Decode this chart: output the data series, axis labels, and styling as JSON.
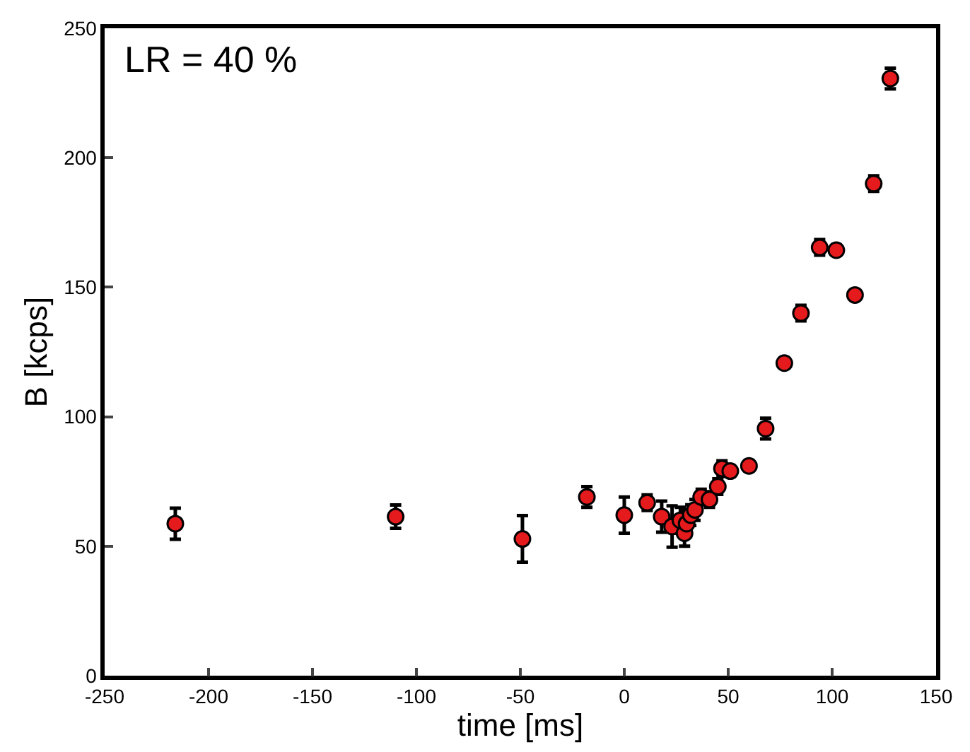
{
  "chart_data": {
    "type": "scatter",
    "xlabel": "time [ms]",
    "ylabel": "B [kcps]",
    "annotations": [
      "LR = 40 %"
    ],
    "x": [
      -216,
      -110,
      -49,
      -18,
      0,
      11,
      18,
      23,
      27,
      29,
      30,
      32,
      34,
      37,
      41,
      45,
      47,
      51,
      60,
      68,
      77,
      85,
      94,
      102,
      111,
      120,
      128
    ],
    "series": [
      {
        "color": "#e41a1c",
        "values": [
          58.7,
          61.4,
          52.8,
          69,
          62,
          66.8,
          61.4,
          57.6,
          60,
          55,
          58.7,
          62,
          64,
          69,
          68,
          73,
          80,
          79,
          81,
          95.4,
          120.7,
          140,
          165.4,
          164.3,
          147,
          190,
          230.6
        ],
        "errors": [
          6,
          4.5,
          9,
          4,
          7,
          3,
          6,
          8,
          5,
          5,
          5,
          4,
          4,
          3,
          3,
          3,
          3,
          2,
          2,
          4,
          2,
          3,
          3,
          2,
          1,
          3,
          4
        ]
      }
    ],
    "xlim": [
      -250,
      150
    ],
    "xticks": [
      -250,
      -200,
      -150,
      -100,
      -50,
      0,
      50,
      100,
      150
    ],
    "ylim": [
      0,
      250
    ],
    "yticks": [
      0,
      50,
      100,
      150,
      200,
      250
    ],
    "marker": "circle"
  }
}
